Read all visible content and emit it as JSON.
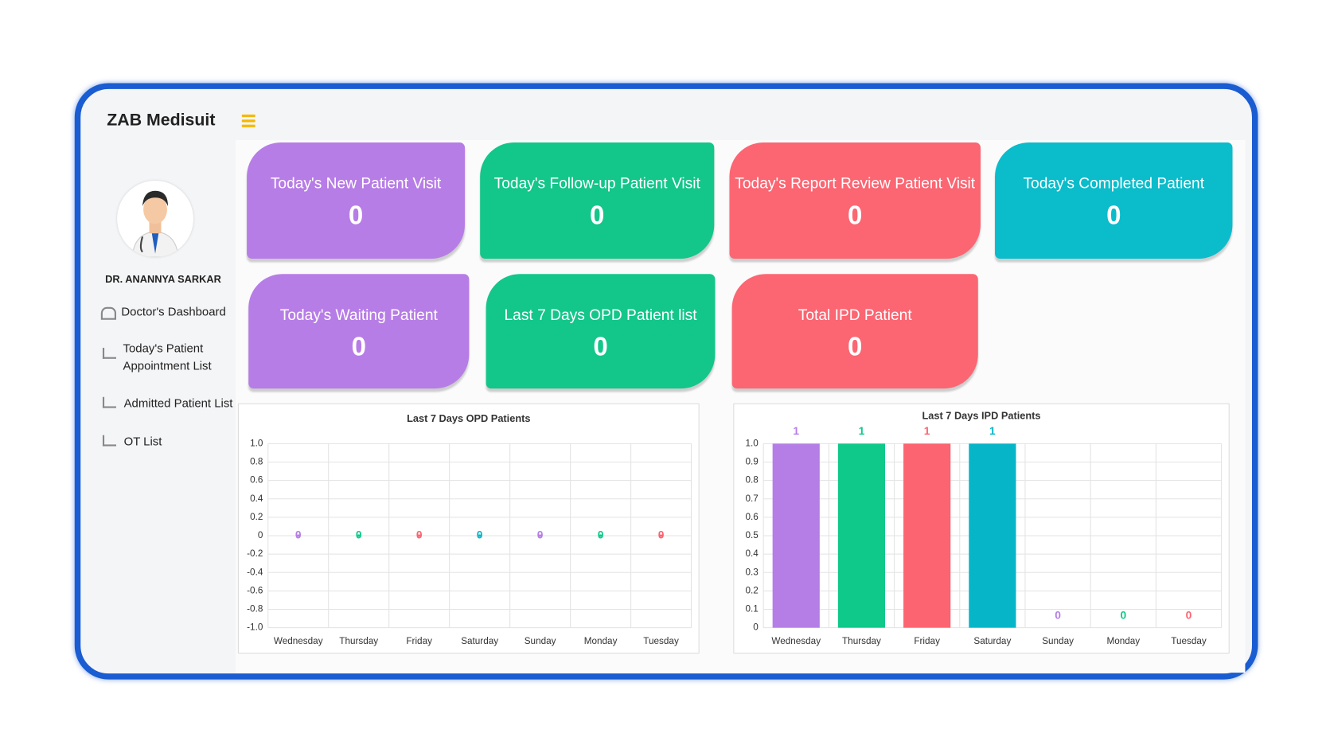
{
  "app_title": "ZAB Medisuit",
  "doctor_name": "DR. ANANNYA SARKAR",
  "nav": [
    "Doctor's Dashboard",
    "Today's Patient Appointment List",
    "Admitted Patient List",
    "OT List"
  ],
  "cards": [
    {
      "label": "Today's New Patient Visit",
      "value": 0,
      "color": "#b77de6"
    },
    {
      "label": "Today's Follow-up Patient Visit",
      "value": 0,
      "color": "#13c68a"
    },
    {
      "label": "Today's Report Review Patient Visit",
      "value": 0,
      "color": "#fb6672"
    },
    {
      "label": "Today's Completed Patient",
      "value": 0,
      "color": "#0bbccb"
    },
    {
      "label": "Today's Waiting Patient",
      "value": 0,
      "color": "#b77de6"
    },
    {
      "label": "Last 7 Days OPD Patient list",
      "value": 0,
      "color": "#13c68a"
    },
    {
      "label": "Total IPD Patient",
      "value": 0,
      "color": "#fb6672"
    }
  ],
  "chart_data": [
    {
      "type": "line",
      "title": "Last 7 Days OPD Patients",
      "categories": [
        "Wednesday",
        "Thursday",
        "Friday",
        "Saturday",
        "Sunday",
        "Monday",
        "Tuesday"
      ],
      "values": [
        0,
        0,
        0,
        0,
        0,
        0,
        0
      ],
      "colors": [
        "#b57ee6",
        "#0ec98a",
        "#fb6470",
        "#06b6c8",
        "#b57ee6",
        "#0ec98a",
        "#fb6470"
      ],
      "ylim": [
        -1,
        1
      ],
      "yticks": [
        {
          "value": 1,
          "label": "1.0"
        },
        0.8,
        0.6,
        0.4,
        0.2,
        0,
        -0.2,
        -0.4,
        -0.6,
        -0.8,
        {
          "value": -1,
          "label": "-1.0"
        }
      ],
      "grid": true
    },
    {
      "type": "bar",
      "title": "Last 7 Days IPD Patients",
      "categories": [
        "Wednesday",
        "Thursday",
        "Friday",
        "Saturday",
        "Sunday",
        "Monday",
        "Tuesday"
      ],
      "values": [
        1,
        1,
        1,
        1,
        0,
        0,
        0
      ],
      "colors": [
        "#b57ee6",
        "#0ec98a",
        "#fb6470",
        "#06b6c8",
        "#b57ee6",
        "#0ec98a",
        "#fb6470"
      ],
      "ylim": [
        0,
        1
      ],
      "yticks": [
        {
          "value": 1,
          "label": "1.0"
        },
        0.9,
        0.8,
        0.7,
        0.6,
        0.5,
        0.4,
        0.3,
        0.2,
        0.1,
        0
      ],
      "grid": true
    }
  ]
}
